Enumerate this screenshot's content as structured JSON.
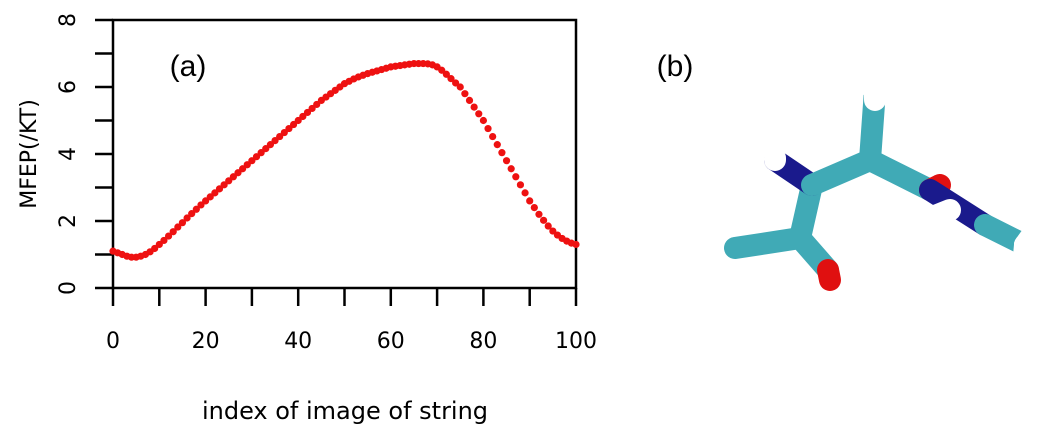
{
  "chart_data": {
    "type": "scatter",
    "x_label": "index of image of string",
    "y_label": "MFEP(/KT)",
    "panel_labels": [
      "(a)",
      "(b)"
    ],
    "color": "#ee1111",
    "x": [
      0,
      1,
      2,
      3,
      4,
      5,
      6,
      7,
      8,
      9,
      10,
      11,
      12,
      13,
      14,
      15,
      16,
      17,
      18,
      19,
      20,
      21,
      22,
      23,
      24,
      25,
      26,
      27,
      28,
      29,
      30,
      31,
      32,
      33,
      34,
      35,
      36,
      37,
      38,
      39,
      40,
      41,
      42,
      43,
      44,
      45,
      46,
      47,
      48,
      49,
      50,
      51,
      52,
      53,
      54,
      55,
      56,
      57,
      58,
      59,
      60,
      61,
      62,
      63,
      64,
      65,
      66,
      67,
      68,
      69,
      70,
      71,
      72,
      73,
      74,
      75,
      76,
      77,
      78,
      79,
      80,
      81,
      82,
      83,
      84,
      85,
      86,
      87,
      88,
      89,
      90,
      91,
      92,
      93,
      94,
      95,
      96,
      97,
      98,
      99,
      100
    ],
    "values": [
      1.1,
      1.05,
      1.0,
      0.95,
      0.92,
      0.92,
      0.95,
      1.0,
      1.08,
      1.18,
      1.3,
      1.42,
      1.55,
      1.68,
      1.82,
      1.95,
      2.09,
      2.22,
      2.35,
      2.48,
      2.6,
      2.72,
      2.84,
      2.96,
      3.08,
      3.2,
      3.32,
      3.44,
      3.56,
      3.68,
      3.8,
      3.92,
      4.04,
      4.16,
      4.28,
      4.4,
      4.52,
      4.64,
      4.76,
      4.88,
      5.0,
      5.12,
      5.24,
      5.36,
      5.48,
      5.6,
      5.7,
      5.8,
      5.9,
      6.0,
      6.1,
      6.17,
      6.24,
      6.3,
      6.35,
      6.4,
      6.44,
      6.48,
      6.52,
      6.56,
      6.6,
      6.62,
      6.64,
      6.66,
      6.68,
      6.7,
      6.7,
      6.7,
      6.69,
      6.66,
      6.6,
      6.5,
      6.38,
      6.25,
      6.12,
      6.0,
      5.8,
      5.6,
      5.4,
      5.2,
      5.0,
      4.76,
      4.52,
      4.28,
      4.04,
      3.8,
      3.56,
      3.32,
      3.08,
      2.84,
      2.6,
      2.4,
      2.2,
      2.02,
      1.85,
      1.7,
      1.58,
      1.48,
      1.4,
      1.34,
      1.3
    ],
    "xlim": [
      0,
      100
    ],
    "xticks": [
      0,
      20,
      40,
      60,
      80,
      100
    ],
    "x_minor_ticks": [
      10,
      30,
      50,
      70,
      90
    ],
    "ylim": [
      0,
      8
    ],
    "yticks": [
      0,
      2,
      4,
      6,
      8
    ],
    "y_minor_ticks": [
      1,
      3,
      5,
      7
    ],
    "grid": false
  }
}
